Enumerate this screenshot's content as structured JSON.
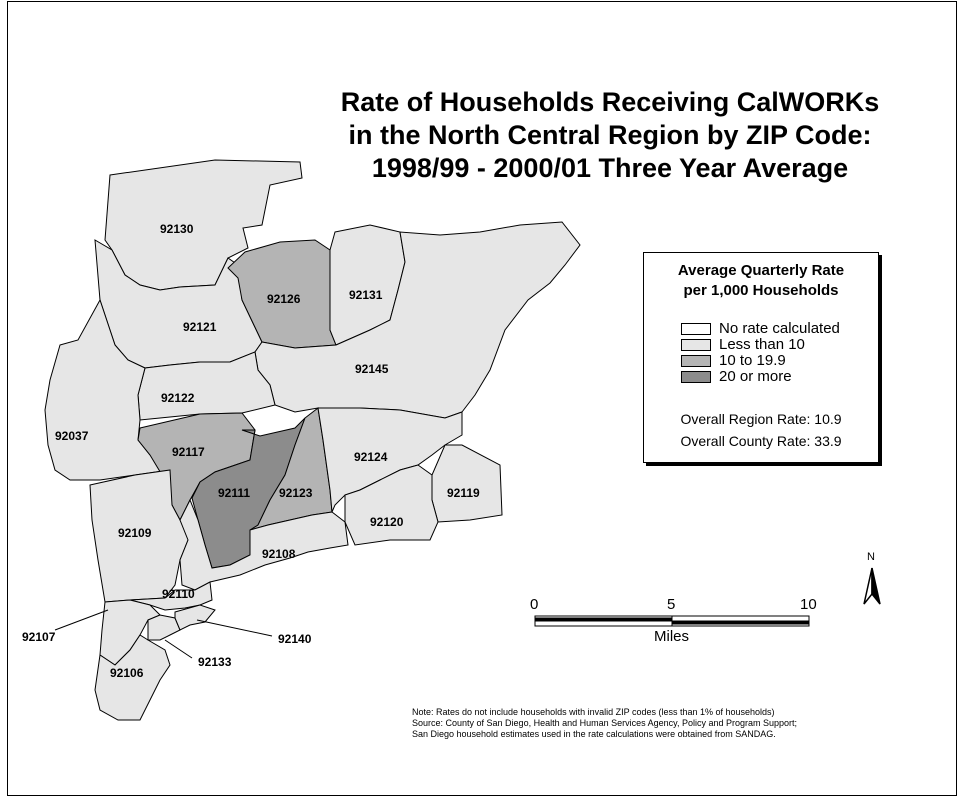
{
  "title": {
    "line1": "Rate of Households Receiving CalWORKs",
    "line2": "in the North Central Region by ZIP Code:",
    "line3": "1998/99 - 2000/01 Three Year Average"
  },
  "colors": {
    "no_rate": "#ffffff",
    "less_than_10": "#e6e6e6",
    "ten_to_19_9": "#b4b4b4",
    "twenty_or_more": "#8c8c8c",
    "border": "#000000"
  },
  "zip_codes": {
    "z92130": "92130",
    "z92126": "92126",
    "z92131": "92131",
    "z92121": "92121",
    "z92145": "92145",
    "z92122": "92122",
    "z92037": "92037",
    "z92117": "92117",
    "z92111": "92111",
    "z92123": "92123",
    "z92124": "92124",
    "z92119": "92119",
    "z92120": "92120",
    "z92109": "92109",
    "z92108": "92108",
    "z92110": "92110",
    "z92107": "92107",
    "z92140": "92140",
    "z92133": "92133",
    "z92106": "92106"
  },
  "legend": {
    "title_line1": "Average Quarterly Rate",
    "title_line2": "per 1,000 Households",
    "items": [
      {
        "label": "No rate calculated",
        "color": "#ffffff"
      },
      {
        "label": "Less than 10",
        "color": "#e6e6e6"
      },
      {
        "label": "10 to 19.9",
        "color": "#b4b4b4"
      },
      {
        "label": "20 or more",
        "color": "#8c8c8c"
      }
    ],
    "region_rate": "Overall Region Rate: 10.9",
    "county_rate": "Overall County Rate: 33.9"
  },
  "scale_bar": {
    "ticks": [
      "0",
      "5",
      "10"
    ],
    "unit": "Miles"
  },
  "north_arrow": {
    "label": "N"
  },
  "note": {
    "line1": "Note: Rates do not include households with invalid ZIP codes (less than 1% of households)",
    "line2": "Source: County of San Diego, Health and Human Services Agency, Policy and Program Support;",
    "line3": "San Diego household estimates used in the rate calculations were obtained from SANDAG."
  }
}
